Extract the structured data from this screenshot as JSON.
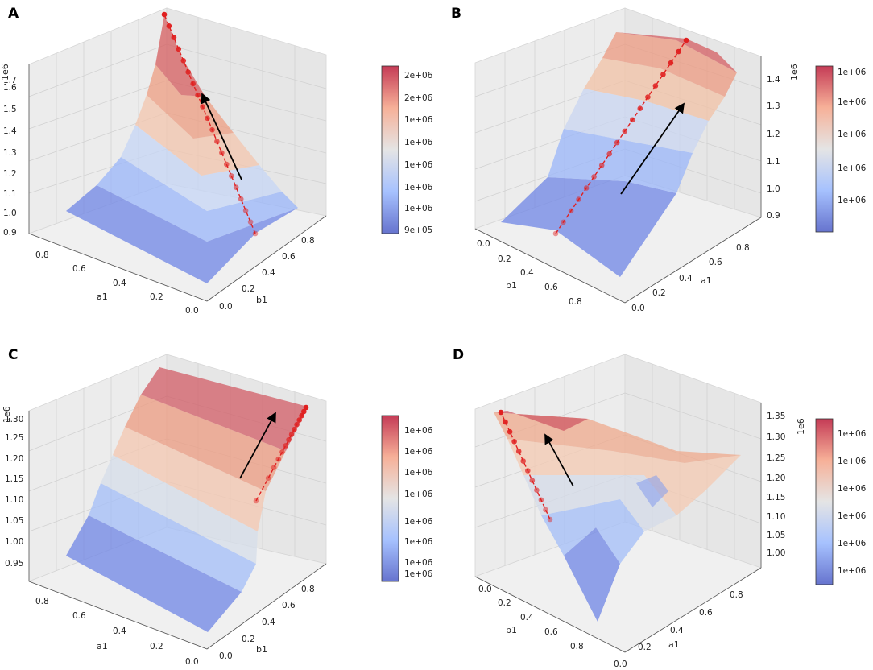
{
  "figure": {
    "colors": {
      "low": "#3b4cc0",
      "mid": "#dddddd",
      "high": "#b40426",
      "path": "#e02020",
      "arrow": "#000000"
    }
  },
  "chart_data": [
    {
      "type": "surface3d",
      "panel": "A",
      "zlabel": "1e6",
      "xlabel": "a1",
      "ylabel": "b1",
      "x_ticks": [
        "0.0",
        "0.2",
        "0.4",
        "0.6",
        "0.8"
      ],
      "y_ticks": [
        "0.0",
        "0.2",
        "0.4",
        "0.6",
        "0.8"
      ],
      "z_ticks": [
        "0.9",
        "1.0",
        "1.1",
        "1.2",
        "1.3",
        "1.4",
        "1.5",
        "1.6",
        "1.7"
      ],
      "zlim": [
        0.9,
        1.75
      ],
      "colorbar_ticks": [
        "2e+06",
        "2e+06",
        "1e+06",
        "1e+06",
        "1e+06",
        "1e+06",
        "1e+06",
        "9e+05"
      ],
      "description_of_surface": "peak ~1.75e6 at corner a1=0.8,b1=0.8; min ~0.92e6 at a1=0,b1=0",
      "path_points": 20
    },
    {
      "type": "surface3d",
      "panel": "B",
      "zlabel": "1e6",
      "xlabel": "b1",
      "ylabel": "a1",
      "x_ticks": [
        "0.0",
        "0.2",
        "0.4",
        "0.6",
        "0.8"
      ],
      "y_ticks": [
        "0.0",
        "0.2",
        "0.4",
        "0.6",
        "0.8"
      ],
      "z_ticks": [
        "0.9",
        "1.0",
        "1.1",
        "1.2",
        "1.3",
        "1.4"
      ],
      "zlim": [
        0.85,
        1.45
      ],
      "colorbar_ticks": [
        "1e+06",
        "1e+06",
        "1e+06",
        "1e+06",
        "1e+06"
      ],
      "path_points": 18
    },
    {
      "type": "surface3d",
      "panel": "C",
      "zlabel": "1e6",
      "xlabel": "a1",
      "ylabel": "b1",
      "x_ticks": [
        "0.0",
        "0.2",
        "0.4",
        "0.6",
        "0.8"
      ],
      "y_ticks": [
        "0.0",
        "0.2",
        "0.4",
        "0.6",
        "0.8"
      ],
      "z_ticks": [
        "0.95",
        "1.00",
        "1.05",
        "1.10",
        "1.15",
        "1.20",
        "1.25",
        "1.30"
      ],
      "zlim": [
        0.93,
        1.34
      ],
      "colorbar_ticks": [
        "1e+06",
        "1e+06",
        "1e+06",
        "1e+06",
        "1e+06",
        "1e+06",
        "1e+06",
        "1e+06"
      ],
      "path_points": 14
    },
    {
      "type": "surface3d",
      "panel": "D",
      "zlabel": "1e6",
      "xlabel": "b1",
      "ylabel": "a1",
      "x_ticks": [
        "0.0",
        "0.2",
        "0.4",
        "0.6",
        "0.8"
      ],
      "y_ticks": [
        "0.0",
        "0.2",
        "0.4",
        "0.6",
        "0.8"
      ],
      "z_ticks": [
        "1.00",
        "1.05",
        "1.10",
        "1.15",
        "1.20",
        "1.25",
        "1.30",
        "1.35"
      ],
      "zlim": [
        0.98,
        1.37
      ],
      "colorbar_ticks": [
        "1e+06",
        "1e+06",
        "1e+06",
        "1e+06",
        "1e+06",
        "1e+06"
      ],
      "path_points": 12
    }
  ]
}
